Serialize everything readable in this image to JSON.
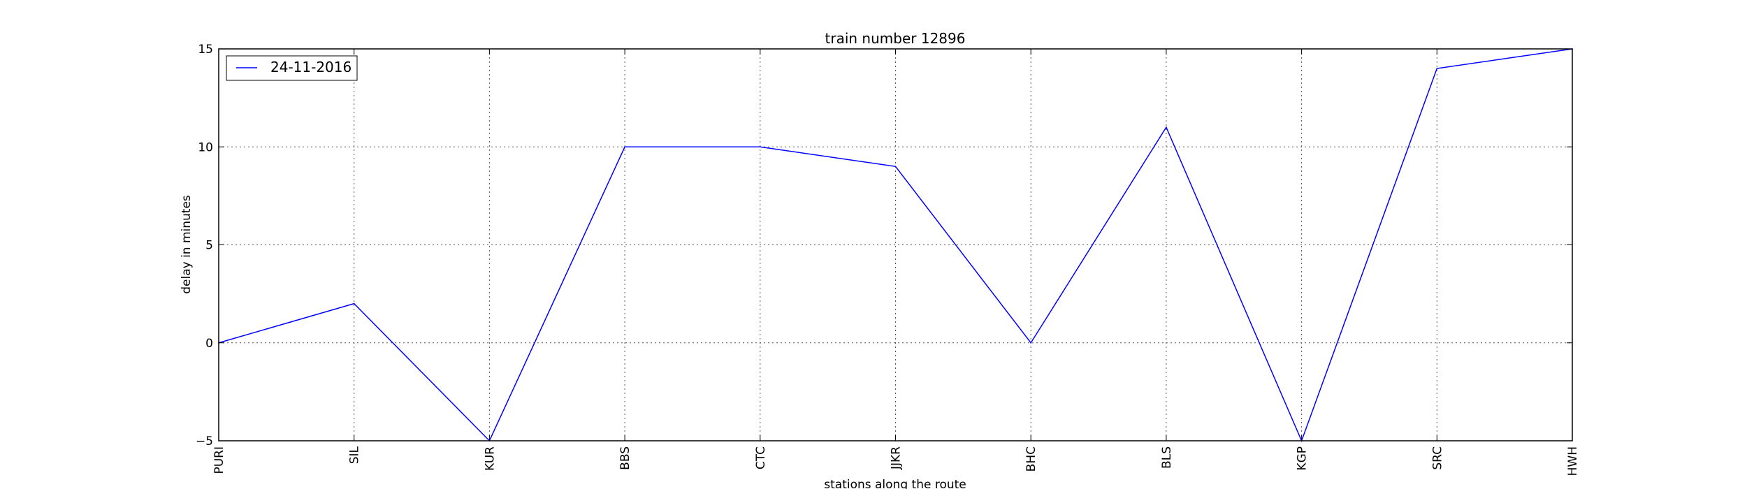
{
  "chart_data": {
    "type": "line",
    "title": "train number 12896",
    "xlabel": "stations along the route",
    "ylabel": "delay in minutes",
    "categories": [
      "PURI",
      "SIL",
      "KUR",
      "BBS",
      "CTC",
      "JJKR",
      "BHC",
      "BLS",
      "KGP",
      "SRC",
      "HWH"
    ],
    "series": [
      {
        "name": "24-11-2016",
        "values": [
          0,
          2,
          -5,
          10,
          10,
          9,
          0,
          11,
          -5,
          14,
          15
        ],
        "color": "#0000ff"
      }
    ],
    "ylim": [
      -5,
      15
    ],
    "yticks": [
      -5,
      0,
      5,
      10,
      15
    ],
    "grid": true,
    "legend": "top-left"
  }
}
